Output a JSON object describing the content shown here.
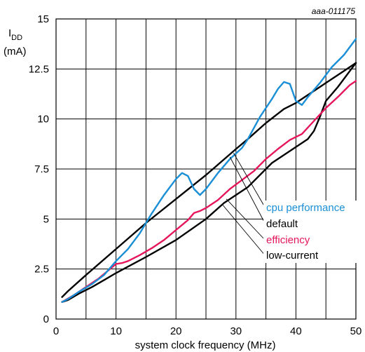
{
  "chart_data": {
    "type": "line",
    "figure_id": "aaa-011175",
    "xlabel": "system clock frequency (MHz)",
    "ylabel_main": "I",
    "ylabel_sub": "DD",
    "ylabel_unit": "(mA)",
    "xlim": [
      0,
      50
    ],
    "ylim": [
      0,
      15
    ],
    "grid": true,
    "x_ticks": [
      0,
      10,
      20,
      30,
      40,
      50
    ],
    "x_tick_labels": [
      "0",
      "10",
      "20",
      "30",
      "40",
      "50"
    ],
    "y_ticks": [
      0,
      2.5,
      5,
      7.5,
      10,
      12.5,
      15
    ],
    "y_tick_labels": [
      "0",
      "2.5",
      "5",
      "7.5",
      "10",
      "12.5",
      "15"
    ],
    "legend_placement": "right, with leader lines",
    "series": [
      {
        "name": "cpu performance",
        "color": "#1a8fd6",
        "x": [
          1,
          2,
          4,
          6,
          8,
          10,
          12,
          14,
          16,
          18,
          20,
          21,
          22,
          23,
          24,
          25,
          27,
          29,
          31,
          32,
          34,
          36,
          37,
          38,
          39,
          40,
          41,
          42,
          44,
          46,
          48,
          50
        ],
        "y": [
          0.85,
          1.0,
          1.4,
          1.75,
          2.2,
          2.9,
          3.5,
          4.3,
          5.3,
          6.2,
          7.0,
          7.3,
          7.15,
          6.5,
          6.2,
          6.5,
          7.3,
          8.0,
          8.55,
          9.0,
          10.1,
          11.0,
          11.5,
          11.85,
          11.75,
          10.9,
          10.7,
          11.1,
          11.8,
          12.6,
          13.2,
          14.0
        ]
      },
      {
        "name": "default",
        "color": "#000000",
        "x": [
          1,
          2,
          5,
          10,
          15,
          20,
          25,
          30,
          32,
          35,
          38,
          40,
          42,
          45,
          48,
          50
        ],
        "y": [
          1.1,
          1.4,
          2.2,
          3.5,
          4.8,
          6.0,
          7.2,
          8.5,
          9.0,
          9.8,
          10.5,
          10.8,
          11.2,
          11.8,
          12.4,
          12.8
        ]
      },
      {
        "name": "efficiency",
        "color": "#e5175a",
        "x": [
          1,
          3,
          5,
          7,
          9,
          10,
          11,
          12,
          14,
          16,
          18,
          20,
          22,
          23,
          24,
          25,
          27,
          29,
          31,
          33,
          35,
          37,
          39,
          41,
          43,
          45,
          47,
          49,
          50
        ],
        "y": [
          0.85,
          1.2,
          1.6,
          2.0,
          2.5,
          2.75,
          2.8,
          2.9,
          3.2,
          3.55,
          3.95,
          4.45,
          4.95,
          5.3,
          5.4,
          5.55,
          5.95,
          6.5,
          6.95,
          7.4,
          8.0,
          8.5,
          8.95,
          9.25,
          9.9,
          10.55,
          11.1,
          11.7,
          11.9
        ]
      },
      {
        "name": "low-current",
        "color": "#000000",
        "x": [
          1,
          2,
          4,
          6,
          8,
          10,
          15,
          20,
          25,
          28,
          32,
          36,
          40,
          42,
          43,
          44,
          45,
          47,
          49,
          50
        ],
        "y": [
          0.85,
          0.95,
          1.3,
          1.6,
          1.95,
          2.3,
          3.1,
          3.95,
          5.0,
          5.8,
          6.6,
          7.8,
          8.6,
          9.0,
          9.4,
          10.1,
          10.9,
          11.6,
          12.4,
          12.8
        ]
      }
    ]
  }
}
